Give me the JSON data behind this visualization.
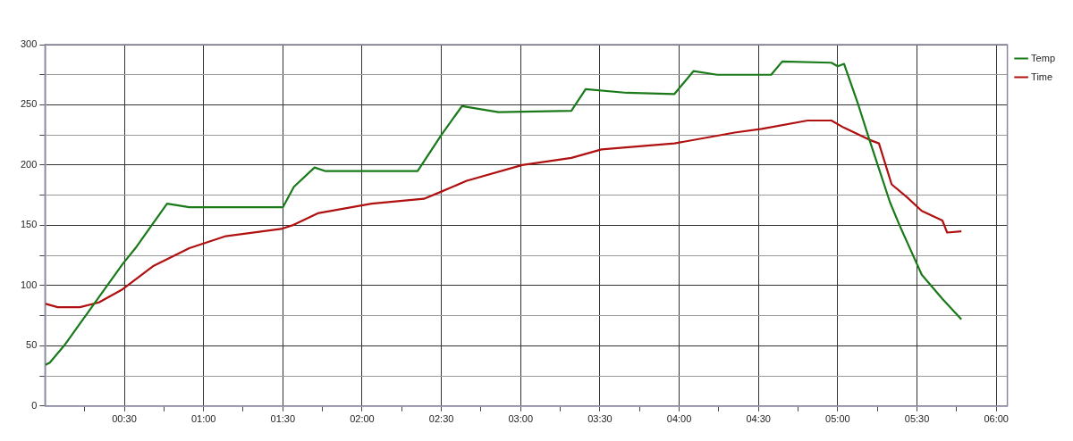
{
  "chart_data": {
    "type": "line",
    "xlim": [
      0,
      6.07
    ],
    "ylim": [
      0,
      300
    ],
    "xticks": [
      {
        "value": 0.25,
        "label": null
      },
      {
        "value": 0.5,
        "label": "00:30"
      },
      {
        "value": 0.75,
        "label": null
      },
      {
        "value": 1,
        "label": "01:00"
      },
      {
        "value": 1.25,
        "label": null
      },
      {
        "value": 1.5,
        "label": "01:30"
      },
      {
        "value": 1.75,
        "label": null
      },
      {
        "value": 2,
        "label": "02:00"
      },
      {
        "value": 2.25,
        "label": null
      },
      {
        "value": 2.5,
        "label": "02:30"
      },
      {
        "value": 2.75,
        "label": null
      },
      {
        "value": 3,
        "label": "03:00"
      },
      {
        "value": 3.25,
        "label": null
      },
      {
        "value": 3.5,
        "label": "03:30"
      },
      {
        "value": 3.75,
        "label": null
      },
      {
        "value": 4,
        "label": "04:00"
      },
      {
        "value": 4.25,
        "label": null
      },
      {
        "value": 4.5,
        "label": "04:30"
      },
      {
        "value": 4.75,
        "label": null
      },
      {
        "value": 5,
        "label": "05:00"
      },
      {
        "value": 5.25,
        "label": null
      },
      {
        "value": 5.5,
        "label": "05:30"
      },
      {
        "value": 5.75,
        "label": null
      },
      {
        "value": 6,
        "label": "06:00"
      }
    ],
    "yticks": [
      0,
      {
        "value": 25,
        "label": null
      },
      50,
      {
        "value": 75,
        "label": null
      },
      100,
      {
        "value": 125,
        "label": null
      },
      150,
      {
        "value": 175,
        "label": null
      },
      200,
      {
        "value": 225,
        "label": null
      },
      250,
      {
        "value": 275,
        "label": null
      },
      300
    ],
    "grid": true,
    "legend": "top right",
    "marker": "none",
    "line_style": "solid",
    "series": [
      {
        "name": "Temp",
        "color": "#1a7a1a",
        "x": [
          0,
          0.03,
          0.12,
          0.49,
          0.57,
          0.77,
          0.91,
          1.5,
          1.57,
          1.7,
          1.77,
          2.35,
          2.5,
          2.63,
          2.86,
          3.32,
          3.41,
          3.67,
          3.97,
          4.09,
          4.24,
          4.58,
          4.65,
          4.96,
          5.0,
          5.04,
          5.13,
          5.2,
          5.33,
          5.39,
          5.53,
          5.66,
          5.78
        ],
        "values": [
          34,
          36,
          50,
          118,
          131,
          168,
          165,
          165,
          182,
          198,
          195,
          195,
          225,
          249,
          244,
          245,
          263,
          260,
          259,
          278,
          275,
          275,
          286,
          285,
          282,
          284,
          250,
          221,
          169,
          150,
          109,
          89,
          72
        ]
      },
      {
        "name": "Time",
        "color": "#b01010",
        "x": [
          0,
          0.08,
          0.22,
          0.34,
          0.49,
          0.68,
          0.91,
          1.14,
          1.49,
          1.56,
          1.72,
          2.06,
          2.39,
          2.5,
          2.66,
          3.01,
          3.32,
          3.51,
          3.97,
          4.35,
          4.52,
          4.81,
          4.96,
          5.04,
          5.2,
          5.26,
          5.34,
          5.44,
          5.53,
          5.66,
          5.69,
          5.78
        ],
        "values": [
          85,
          82,
          82,
          86,
          97,
          116,
          131,
          141,
          147,
          150,
          160,
          168,
          172,
          178,
          187,
          200,
          206,
          213,
          218,
          227,
          230,
          237,
          237,
          231,
          221,
          218,
          184,
          173,
          162,
          154,
          144,
          145
        ]
      }
    ]
  }
}
